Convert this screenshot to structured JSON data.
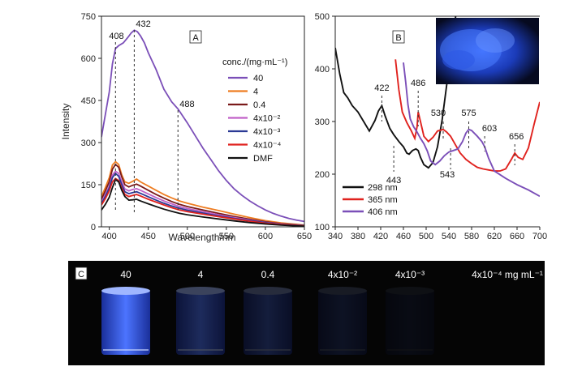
{
  "chart_data": [
    {
      "panel": "A",
      "type": "line",
      "xlabel": "Wavelength/nm",
      "ylabel": "Intensity",
      "xlim": [
        390,
        650
      ],
      "ylim": [
        0,
        750
      ],
      "xticks": [
        "400",
        "450",
        "500",
        "550",
        "600",
        "650"
      ],
      "yticks": [
        "0",
        "150",
        "300",
        "450",
        "600",
        "750"
      ],
      "legend_title": "conc./(mg·mL⁻¹)",
      "legend_placement": "right",
      "peak_labels": [
        "408",
        "432",
        "488"
      ],
      "peak_positions": [
        408,
        432,
        488
      ],
      "series": [
        {
          "name": "40",
          "color": "#7b4fb8",
          "x": [
            390,
            395,
            400,
            404,
            408,
            412,
            418,
            424,
            428,
            432,
            436,
            440,
            445,
            450,
            455,
            460,
            470,
            480,
            488,
            500,
            510,
            520,
            530,
            540,
            550,
            560,
            570,
            580,
            590,
            600,
            610,
            620,
            630,
            640,
            650
          ],
          "y": [
            320,
            400,
            480,
            580,
            635,
            645,
            655,
            675,
            690,
            700,
            695,
            680,
            655,
            620,
            590,
            560,
            490,
            445,
            420,
            370,
            325,
            280,
            240,
            200,
            165,
            135,
            112,
            92,
            75,
            60,
            48,
            38,
            30,
            24,
            19
          ]
        },
        {
          "name": "4",
          "color": "#ee7d22",
          "x": [
            390,
            395,
            400,
            404,
            408,
            412,
            416,
            420,
            425,
            430,
            435,
            440,
            450,
            460,
            470,
            480,
            490,
            500,
            520,
            540,
            560,
            580,
            600,
            620,
            650
          ],
          "y": [
            108,
            140,
            175,
            220,
            232,
            222,
            185,
            160,
            155,
            162,
            170,
            160,
            145,
            130,
            115,
            103,
            92,
            84,
            70,
            58,
            45,
            33,
            22,
            14,
            6
          ]
        },
        {
          "name": "0.4",
          "color": "#7a1a1a",
          "x": [
            390,
            395,
            400,
            404,
            408,
            412,
            416,
            420,
            425,
            430,
            435,
            440,
            450,
            460,
            470,
            480,
            490,
            500,
            520,
            540,
            560,
            580,
            600,
            620,
            650
          ],
          "y": [
            98,
            128,
            160,
            205,
            222,
            212,
            178,
            150,
            142,
            148,
            152,
            145,
            130,
            115,
            102,
            90,
            80,
            72,
            60,
            48,
            37,
            27,
            18,
            11,
            5
          ]
        },
        {
          "name": "4x10⁻²",
          "color": "#c060c8",
          "x": [
            390,
            395,
            400,
            404,
            408,
            412,
            416,
            420,
            425,
            430,
            435,
            440,
            450,
            460,
            470,
            480,
            490,
            500,
            520,
            540,
            560,
            580,
            600,
            620,
            650
          ],
          "y": [
            88,
            115,
            145,
            185,
            198,
            190,
            160,
            135,
            128,
            133,
            136,
            130,
            117,
            104,
            92,
            82,
            72,
            65,
            54,
            43,
            33,
            24,
            16,
            10,
            4
          ]
        },
        {
          "name": "4x10⁻³",
          "color": "#2b3a95",
          "x": [
            390,
            395,
            400,
            404,
            408,
            412,
            416,
            420,
            425,
            430,
            435,
            440,
            450,
            460,
            470,
            480,
            490,
            500,
            520,
            540,
            560,
            580,
            600,
            620,
            650
          ],
          "y": [
            82,
            108,
            138,
            175,
            190,
            180,
            150,
            125,
            118,
            122,
            125,
            119,
            107,
            95,
            84,
            74,
            66,
            59,
            49,
            39,
            30,
            22,
            15,
            9,
            4
          ]
        },
        {
          "name": "4x10⁻⁴",
          "color": "#e0221e",
          "x": [
            390,
            395,
            400,
            404,
            408,
            412,
            416,
            420,
            425,
            430,
            435,
            440,
            450,
            460,
            470,
            480,
            490,
            500,
            520,
            540,
            560,
            580,
            600,
            620,
            650
          ],
          "y": [
            78,
            100,
            128,
            160,
            172,
            165,
            138,
            115,
            108,
            112,
            115,
            110,
            98,
            88,
            78,
            68,
            60,
            54,
            45,
            36,
            28,
            20,
            13,
            8,
            3
          ]
        },
        {
          "name": "DMF",
          "color": "#111111",
          "x": [
            390,
            395,
            400,
            404,
            408,
            412,
            416,
            420,
            425,
            430,
            435,
            440,
            450,
            460,
            470,
            480,
            490,
            500,
            520,
            540,
            560,
            580,
            600,
            620,
            650
          ],
          "y": [
            60,
            80,
            105,
            140,
            168,
            160,
            130,
            108,
            95,
            96,
            98,
            92,
            82,
            72,
            63,
            55,
            48,
            43,
            35,
            28,
            21,
            15,
            10,
            6,
            2
          ]
        }
      ]
    },
    {
      "panel": "B",
      "type": "line",
      "xlim": [
        340,
        700
      ],
      "ylim": [
        100,
        500
      ],
      "xticks": [
        "340",
        "380",
        "420",
        "460",
        "500",
        "540",
        "580",
        "620",
        "660",
        "700"
      ],
      "yticks": [
        "100",
        "200",
        "300",
        "400",
        "500"
      ],
      "legend_placement": "bottom-left",
      "peak_labels": [
        "422",
        "443",
        "486",
        "530",
        "543",
        "575",
        "603",
        "656"
      ],
      "peak_positions": [
        422,
        443,
        486,
        530,
        543,
        575,
        603,
        656
      ],
      "inset": "blue photoluminescence photo",
      "series": [
        {
          "name": "298 nm",
          "color": "#111111",
          "x": [
            340,
            348,
            355,
            362,
            370,
            380,
            390,
            400,
            410,
            416,
            422,
            428,
            436,
            443,
            452,
            460,
            466,
            470,
            476,
            482,
            486,
            490,
            496,
            504,
            512,
            520,
            528,
            536,
            544,
            552
          ],
          "y": [
            440,
            390,
            355,
            345,
            330,
            318,
            300,
            282,
            302,
            320,
            330,
            310,
            287,
            275,
            262,
            252,
            240,
            238,
            245,
            248,
            245,
            232,
            218,
            212,
            222,
            252,
            302,
            368,
            442,
            500
          ]
        },
        {
          "name": "365 nm",
          "color": "#e0221e",
          "x": [
            446,
            452,
            458,
            466,
            474,
            480,
            484,
            486,
            490,
            496,
            504,
            512,
            520,
            530,
            536,
            543,
            552,
            560,
            570,
            580,
            590,
            600,
            610,
            620,
            630,
            640,
            650,
            656,
            662,
            670,
            680,
            690,
            700
          ],
          "y": [
            418,
            360,
            318,
            298,
            282,
            268,
            290,
            318,
            300,
            272,
            262,
            270,
            282,
            285,
            280,
            272,
            255,
            240,
            228,
            220,
            213,
            210,
            208,
            206,
            206,
            210,
            228,
            240,
            232,
            228,
            250,
            295,
            337
          ]
        },
        {
          "name": "406 nm",
          "color": "#7b4fb8",
          "x": [
            460,
            464,
            468,
            472,
            478,
            484,
            490,
            496,
            502,
            508,
            516,
            524,
            532,
            540,
            548,
            556,
            564,
            570,
            575,
            580,
            590,
            598,
            603,
            610,
            620,
            640,
            660,
            680,
            700
          ],
          "y": [
            412,
            375,
            332,
            305,
            290,
            280,
            268,
            258,
            244,
            225,
            218,
            225,
            235,
            242,
            245,
            248,
            262,
            278,
            285,
            283,
            272,
            262,
            252,
            230,
            206,
            192,
            180,
            170,
            158
          ]
        }
      ]
    }
  ],
  "labels": {
    "panel_a": "A",
    "panel_b": "B",
    "panel_c": "C"
  },
  "vials": {
    "labels": [
      "40",
      "4",
      "0.4",
      "4x10⁻²",
      "4x10⁻³",
      "4x10⁻⁴ mg mL⁻¹"
    ],
    "brightness": [
      1.0,
      0.35,
      0.22,
      0.12,
      0.06,
      0.0
    ]
  }
}
